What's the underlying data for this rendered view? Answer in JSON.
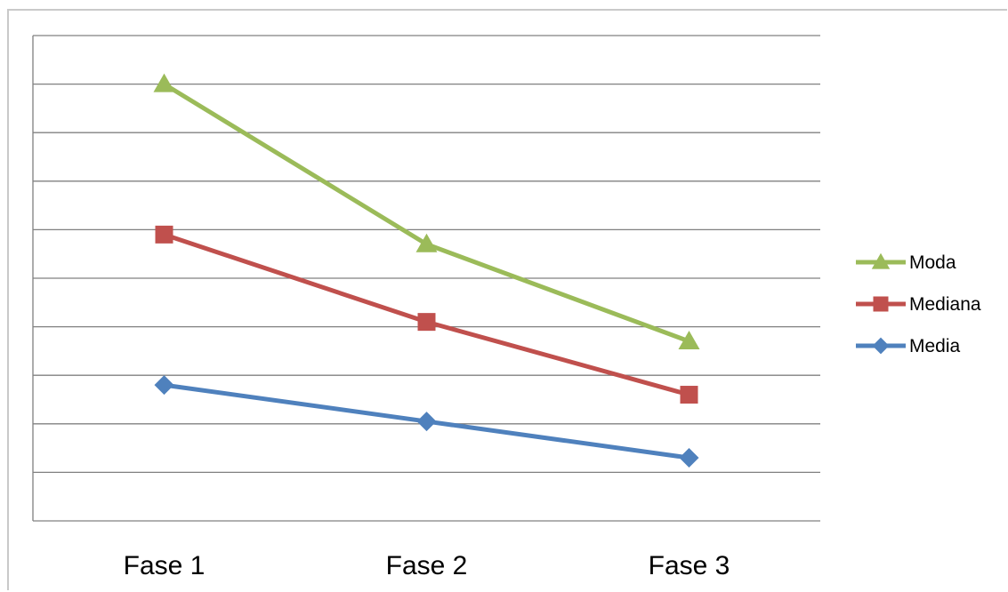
{
  "chart_data": {
    "type": "line",
    "categories": [
      "Fase 1",
      "Fase 2",
      "Fase 3"
    ],
    "ylim": [
      0,
      10
    ],
    "grid": true,
    "legend_position": "right",
    "series": [
      {
        "name": "Moda",
        "values": [
          9,
          5.7,
          3.7
        ],
        "color": "#9bbb59",
        "marker": "triangle"
      },
      {
        "name": "Mediana",
        "values": [
          5.9,
          4.1,
          2.6
        ],
        "color": "#c0504d",
        "marker": "square"
      },
      {
        "name": "Media",
        "values": [
          2.8,
          2.05,
          1.3
        ],
        "color": "#4f81bd",
        "marker": "diamond"
      }
    ],
    "colors": {
      "grid": "#808080",
      "frame": "#c9c9c9"
    }
  }
}
